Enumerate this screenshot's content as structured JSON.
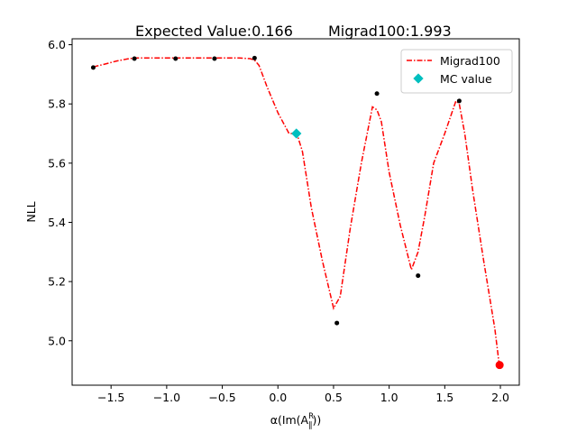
{
  "chart_data": {
    "type": "line",
    "title_left": "Expected Value:0.166",
    "title_right": "Migrad100:1.993",
    "xlabel": "α(Im(A",
    "xlabel_sup": "R",
    "xlabel_sub": "∥",
    "xlabel_end": "))",
    "ylabel": "NLL",
    "xlim": [
      -1.85,
      2.17
    ],
    "ylim": [
      4.85,
      6.02
    ],
    "xticks": [
      -1.5,
      -1.0,
      -0.5,
      0.0,
      0.5,
      1.0,
      1.5,
      2.0
    ],
    "xtick_labels": [
      "−1.5",
      "−1.0",
      "−0.5",
      "0.0",
      "0.5",
      "1.0",
      "1.5",
      "2.0"
    ],
    "yticks": [
      5.0,
      5.2,
      5.4,
      5.6,
      5.8,
      6.0
    ],
    "ytick_labels": [
      "5.0",
      "5.2",
      "5.4",
      "5.6",
      "5.8",
      "6.0"
    ],
    "grid": false,
    "legend_position": "top-right",
    "series": [
      {
        "name": "Migrad100",
        "kind": "line",
        "style": "dash-dot",
        "color": "#ff0000",
        "x": [
          -1.66,
          -1.55,
          -1.45,
          -1.35,
          -1.29,
          -1.2,
          -1.1,
          -1.0,
          -0.92,
          -0.8,
          -0.7,
          -0.57,
          -0.45,
          -0.35,
          -0.25,
          -0.21,
          -0.17,
          -0.1,
          0.0,
          0.1,
          0.17,
          0.22,
          0.3,
          0.4,
          0.5,
          0.56,
          0.65,
          0.75,
          0.85,
          0.89,
          0.93,
          1.0,
          1.1,
          1.2,
          1.26,
          1.32,
          1.4,
          1.5,
          1.6,
          1.63,
          1.68,
          1.75,
          1.85,
          1.95,
          1.99
        ],
        "y": [
          5.925,
          5.935,
          5.945,
          5.952,
          5.955,
          5.955,
          5.955,
          5.955,
          5.955,
          5.955,
          5.955,
          5.955,
          5.955,
          5.955,
          5.953,
          5.948,
          5.93,
          5.86,
          5.77,
          5.7,
          5.7,
          5.64,
          5.45,
          5.27,
          5.11,
          5.15,
          5.38,
          5.6,
          5.79,
          5.78,
          5.74,
          5.57,
          5.39,
          5.24,
          5.3,
          5.42,
          5.6,
          5.7,
          5.81,
          5.8,
          5.7,
          5.51,
          5.27,
          5.04,
          4.918
        ]
      },
      {
        "name": "",
        "kind": "points",
        "color": "#000000",
        "x": [
          -1.66,
          -1.29,
          -0.92,
          -0.57,
          -0.21,
          0.53,
          0.89,
          1.26,
          1.63
        ],
        "y": [
          5.923,
          5.953,
          5.953,
          5.953,
          5.955,
          5.06,
          5.835,
          5.22,
          5.81
        ]
      },
      {
        "name": "MC value",
        "kind": "marker",
        "marker": "diamond",
        "color": "#00bfbf",
        "x": [
          0.166
        ],
        "y": [
          5.7
        ]
      },
      {
        "name": "",
        "kind": "marker",
        "marker": "circle",
        "color": "#ff0000",
        "x": [
          1.993
        ],
        "y": [
          4.918
        ]
      }
    ]
  }
}
